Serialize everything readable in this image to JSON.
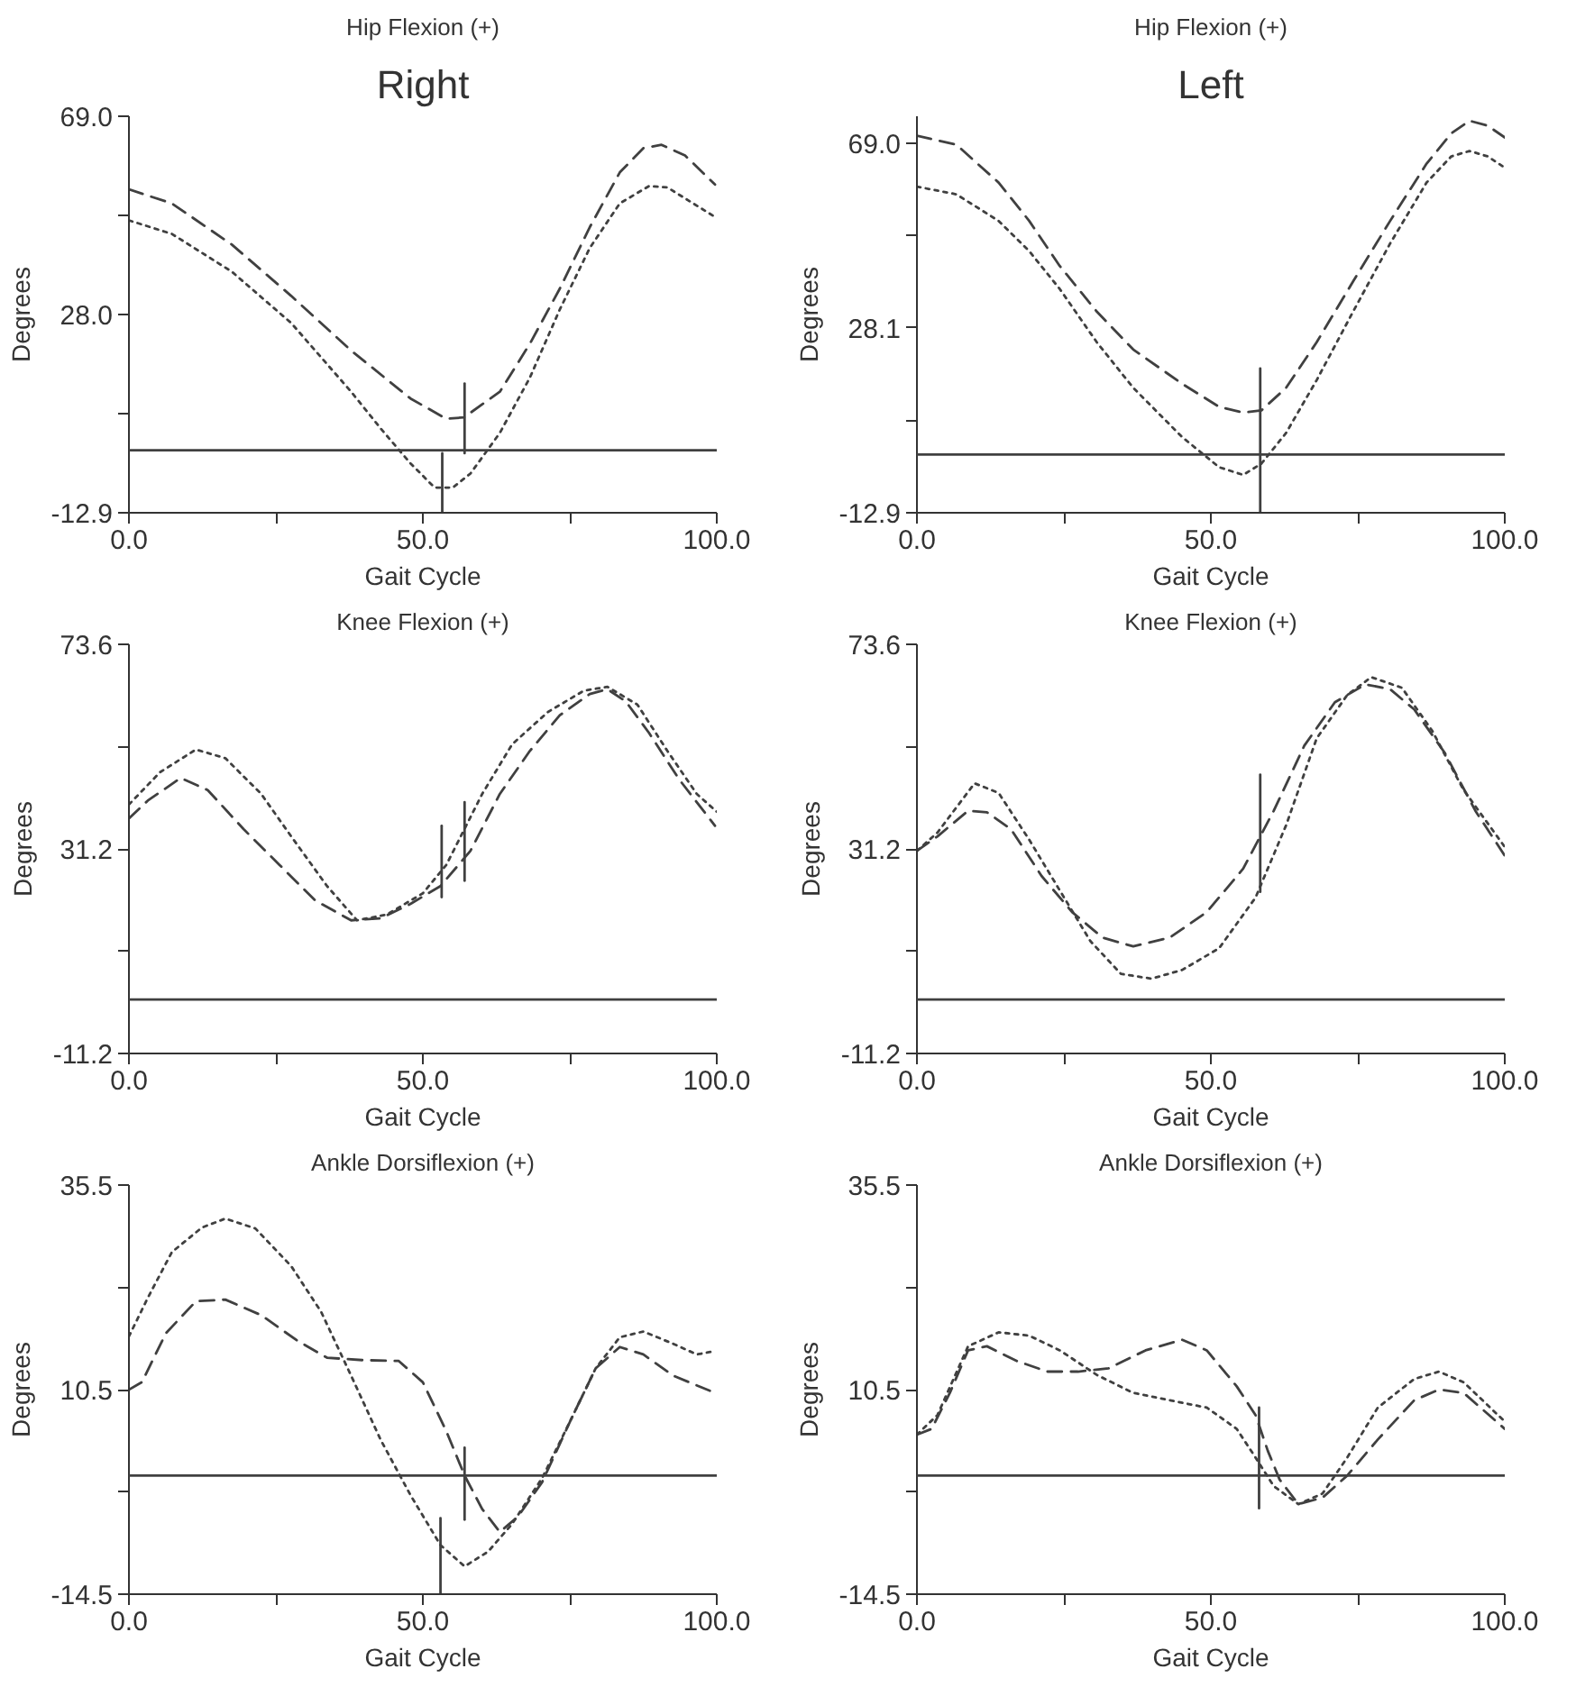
{
  "chart_data": [
    {
      "type": "line",
      "annotations": [
        "Right"
      ],
      "title": "Hip Flexion (+)",
      "xlabel": "Gait Cycle",
      "ylabel": "Degrees",
      "xlim": [
        0,
        100
      ],
      "xticks": [
        {
          "value": 0,
          "label": "0.0"
        },
        {
          "value": 25,
          "label": null
        },
        {
          "value": 50,
          "label": "50.0"
        },
        {
          "value": 75,
          "label": null
        },
        {
          "value": 100,
          "label": "100.0"
        }
      ],
      "ylim": [
        -12.9,
        69.0
      ],
      "yticks": [
        {
          "value": -12.9,
          "label": "-12.9"
        },
        {
          "value": 7.6,
          "label": null
        },
        {
          "value": 28.0,
          "label": "28.0"
        },
        {
          "value": 48.5,
          "label": null
        },
        {
          "value": 69.0,
          "label": "69.0"
        }
      ],
      "ref_lines": [
        {
          "axis": "y",
          "value": 0,
          "color": "#404040"
        }
      ],
      "series": [
        {
          "color": "#404040",
          "line_style": "dashed",
          "x": [
            0,
            7.3,
            17.5,
            27.6,
            37.8,
            47.9,
            54,
            57,
            63.1,
            68.2,
            73.3,
            78.4,
            83.5,
            87.5,
            90.6,
            94.6,
            99.7
          ],
          "values": [
            53.9,
            51.0,
            42.5,
            31.9,
            20.6,
            10.7,
            6.5,
            6.8,
            12.1,
            22.0,
            33.4,
            46.1,
            57.4,
            62.4,
            63.1,
            60.9,
            54.9
          ]
        },
        {
          "color": "#404040",
          "line_style": "dotted",
          "x": [
            0,
            7.3,
            17.5,
            27.6,
            37.8,
            42.9,
            47.9,
            52,
            55.1,
            58.1,
            63.1,
            68.2,
            73.3,
            78.4,
            83.5,
            88.5,
            91.6,
            99.7
          ],
          "values": [
            47.5,
            44.7,
            36.9,
            26.3,
            12.1,
            4.4,
            -2.7,
            -7.7,
            -7.7,
            -4.8,
            3.6,
            15.0,
            29.1,
            41.8,
            51.0,
            54.6,
            54.3,
            48.2
          ]
        },
        {
          "color": "#404040",
          "line_style": "solid",
          "x": [
            57.1,
            57.1
          ],
          "values": [
            13.8,
            -0.6
          ]
        },
        {
          "color": "#404040",
          "line_style": "solid",
          "x": [
            53.3,
            53.3
          ],
          "values": [
            -0.6,
            -12.9
          ]
        }
      ]
    },
    {
      "type": "line",
      "annotations": [
        "Left"
      ],
      "title": "Hip Flexion (+)",
      "xlabel": "Gait Cycle",
      "ylabel": "Degrees",
      "xlim": [
        0,
        100
      ],
      "xticks": [
        {
          "value": 0,
          "label": "0.0"
        },
        {
          "value": 25,
          "label": null
        },
        {
          "value": 50,
          "label": "50.0"
        },
        {
          "value": 75,
          "label": null
        },
        {
          "value": 100,
          "label": "100.0"
        }
      ],
      "ylim": [
        -12.9,
        75
      ],
      "yticks": [
        {
          "value": -12.9,
          "label": "-12.9"
        },
        {
          "value": 7.6,
          "label": null
        },
        {
          "value": 28.1,
          "label": "28.1"
        },
        {
          "value": 48.5,
          "label": null
        },
        {
          "value": 69.0,
          "label": "69.0"
        }
      ],
      "ref_lines": [
        {
          "axis": "y",
          "value": 0,
          "color": "#404040"
        }
      ],
      "series": [
        {
          "color": "#404040",
          "line_style": "dashed",
          "x": [
            0,
            6.7,
            13.9,
            19.1,
            24.3,
            30.6,
            36.8,
            45.1,
            51.4,
            55.5,
            58.6,
            62.8,
            68.0,
            74.2,
            80.5,
            86.7,
            90.9,
            94.0,
            97.1,
            100
          ],
          "values": [
            70.7,
            68.7,
            60.3,
            51.8,
            41.8,
            31.7,
            23.3,
            15.7,
            10.6,
            9.3,
            9.8,
            14.8,
            24.9,
            38.4,
            51.8,
            64.5,
            71.2,
            74.0,
            72.9,
            70.3
          ]
        },
        {
          "color": "#404040",
          "line_style": "dotted",
          "x": [
            0,
            6.7,
            13.9,
            19.1,
            24.3,
            30.6,
            36.8,
            45.1,
            51.4,
            55.5,
            58.6,
            62.8,
            68.0,
            74.2,
            80.5,
            86.7,
            90.9,
            94.0,
            97.1,
            100
          ],
          "values": [
            59.4,
            57.7,
            51.8,
            45.1,
            36.7,
            24.9,
            14.8,
            3.9,
            -2.8,
            -4.5,
            -2.0,
            4.8,
            16.5,
            31.7,
            46.8,
            60.3,
            66.1,
            67.3,
            66.1,
            63.6
          ]
        },
        {
          "color": "#404040",
          "line_style": "solid",
          "x": [
            58.4,
            58.4
          ],
          "values": [
            19.1,
            -12.9
          ]
        }
      ]
    },
    {
      "type": "line",
      "title": "Knee Flexion (+)",
      "xlabel": "Gait Cycle",
      "ylabel": "Degrees",
      "xlim": [
        0,
        100
      ],
      "xticks": [
        {
          "value": 0,
          "label": "0.0"
        },
        {
          "value": 25,
          "label": null
        },
        {
          "value": 50,
          "label": "50.0"
        },
        {
          "value": 75,
          "label": null
        },
        {
          "value": 100,
          "label": "100.0"
        }
      ],
      "ylim": [
        -11.2,
        73.6
      ],
      "yticks": [
        {
          "value": -11.2,
          "label": "-11.2"
        },
        {
          "value": 10.0,
          "label": null
        },
        {
          "value": 31.2,
          "label": "31.2"
        },
        {
          "value": 52.4,
          "label": null
        },
        {
          "value": 73.6,
          "label": "73.6"
        }
      ],
      "ref_lines": [
        {
          "axis": "y",
          "value": 0,
          "color": "#404040"
        }
      ],
      "series": [
        {
          "color": "#404040",
          "line_style": "dashed",
          "x": [
            0,
            3.2,
            8.8,
            13.4,
            19.5,
            25.6,
            31.7,
            37.8,
            42.8,
            47.9,
            53,
            58.1,
            63.1,
            68.2,
            73.3,
            78.4,
            81.4,
            84.5,
            88.5,
            93.6,
            99.7
          ],
          "values": [
            37.5,
            41.2,
            45.9,
            43.4,
            35.3,
            27.9,
            20.5,
            16.4,
            16.8,
            19.8,
            23.5,
            30.8,
            42.6,
            51.5,
            58.9,
            63.3,
            64.3,
            61.8,
            55.2,
            45.6,
            36.0
          ]
        },
        {
          "color": "#404040",
          "line_style": "dotted",
          "x": [
            0,
            5.3,
            11.4,
            16.4,
            22.5,
            27.6,
            33.7,
            38.8,
            43.9,
            50,
            54,
            60.1,
            65.2,
            71.3,
            77.4,
            81.4,
            86.5,
            91.6,
            96.6,
            100
          ],
          "values": [
            40.4,
            47.1,
            51.8,
            50.0,
            42.6,
            33.8,
            23.5,
            16.4,
            17.6,
            22.0,
            27.9,
            42.6,
            52.9,
            59.6,
            64.0,
            64.8,
            61.1,
            51.5,
            42.6,
            38.9
          ]
        },
        {
          "color": "#404040",
          "line_style": "solid",
          "x": [
            57.1,
            57.1
          ],
          "values": [
            40.9,
            24.6
          ]
        },
        {
          "color": "#404040",
          "line_style": "solid",
          "x": [
            53.2,
            53.2
          ],
          "values": [
            36.0,
            21.2
          ]
        }
      ]
    },
    {
      "type": "line",
      "title": "Knee Flexion (+)",
      "xlabel": "Gait Cycle",
      "ylabel": "Degrees",
      "xlim": [
        0,
        100
      ],
      "xticks": [
        {
          "value": 0,
          "label": "0.0"
        },
        {
          "value": 25,
          "label": null
        },
        {
          "value": 50,
          "label": "50.0"
        },
        {
          "value": 75,
          "label": null
        },
        {
          "value": 100,
          "label": "100.0"
        }
      ],
      "ylim": [
        -11.2,
        73.6
      ],
      "yticks": [
        {
          "value": -11.2,
          "label": "-11.2"
        },
        {
          "value": 10.0,
          "label": null
        },
        {
          "value": 31.2,
          "label": "31.2"
        },
        {
          "value": 52.4,
          "label": null
        },
        {
          "value": 73.6,
          "label": "73.6"
        }
      ],
      "ref_lines": [
        {
          "axis": "y",
          "value": 0,
          "color": "#404040"
        }
      ],
      "series": [
        {
          "color": "#404040",
          "line_style": "dashed",
          "x": [
            0,
            3.5,
            8.7,
            11.9,
            16,
            21.2,
            26.4,
            31.6,
            36.8,
            43,
            49.3,
            55.5,
            60.7,
            65.9,
            71.1,
            76.3,
            80.5,
            84.6,
            89.8,
            95,
            100
          ],
          "values": [
            30.8,
            33.8,
            39.1,
            38.8,
            35.3,
            25.6,
            18.1,
            12.8,
            11.0,
            12.8,
            18.1,
            27.1,
            39.1,
            52.6,
            61.6,
            65.3,
            64.3,
            60.1,
            51.1,
            39.1,
            29.8
          ]
        },
        {
          "color": "#404040",
          "line_style": "dotted",
          "x": [
            0,
            3.5,
            9.8,
            13.9,
            19.1,
            24.3,
            29.5,
            34.7,
            39.9,
            45.1,
            51.4,
            57.6,
            62.8,
            68,
            73.2,
            77.3,
            82.5,
            87.7,
            92.9,
            100
          ],
          "values": [
            30.8,
            34.6,
            44.8,
            42.8,
            33.1,
            22.6,
            12.1,
            5.3,
            4.3,
            6.1,
            10.6,
            21.1,
            36.1,
            54.1,
            63.1,
            66.8,
            64.6,
            55.6,
            43.6,
            31.6
          ]
        },
        {
          "color": "#404040",
          "line_style": "solid",
          "x": [
            58.4,
            58.4
          ],
          "values": [
            46.6,
            22.3
          ]
        }
      ]
    },
    {
      "type": "line",
      "title": "Ankle Dorsiflexion (+)",
      "xlabel": "Gait Cycle",
      "ylabel": "Degrees",
      "xlim": [
        0,
        100
      ],
      "xticks": [
        {
          "value": 0,
          "label": "0.0"
        },
        {
          "value": 25,
          "label": null
        },
        {
          "value": 50,
          "label": "50.0"
        },
        {
          "value": 75,
          "label": null
        },
        {
          "value": 100,
          "label": "100.0"
        }
      ],
      "ylim": [
        -14.5,
        35.5
      ],
      "yticks": [
        {
          "value": -14.5,
          "label": "-14.5"
        },
        {
          "value": -2.0,
          "label": null
        },
        {
          "value": 10.5,
          "label": "10.5"
        },
        {
          "value": 23.0,
          "label": null
        },
        {
          "value": 35.5,
          "label": "35.5"
        }
      ],
      "ref_lines": [
        {
          "axis": "y",
          "value": 0,
          "color": "#404040"
        }
      ],
      "series": [
        {
          "color": "#404040",
          "line_style": "dashed",
          "x": [
            0,
            2.2,
            6.3,
            11.4,
            16.4,
            22.5,
            28.6,
            33.7,
            39.8,
            45.9,
            50,
            54,
            57.1,
            60.1,
            63.1,
            66.2,
            70.3,
            75.3,
            79.4,
            83.5,
            87.5,
            92.6,
            99.7
          ],
          "values": [
            10.5,
            11.4,
            17.4,
            21.3,
            21.5,
            19.6,
            16.5,
            14.4,
            14.1,
            14.0,
            11.4,
            5.4,
            0.0,
            -4.1,
            -6.9,
            -5.0,
            -0.8,
            7.0,
            13.1,
            15.7,
            14.8,
            12.2,
            10.1
          ]
        },
        {
          "color": "#404040",
          "line_style": "dotted",
          "x": [
            0,
            3.2,
            7.3,
            12.4,
            16.4,
            21.5,
            27.6,
            32.7,
            37.8,
            42.8,
            47.9,
            53,
            57.1,
            61.1,
            65.2,
            70.3,
            75.3,
            79.4,
            83.5,
            87.5,
            92.6,
            96.6,
            99.7
          ],
          "values": [
            17.0,
            21.7,
            27.3,
            30.3,
            31.4,
            30.2,
            25.6,
            20.0,
            12.2,
            4.4,
            -2.4,
            -8.5,
            -11.1,
            -9.3,
            -5.9,
            -0.3,
            7.0,
            13.1,
            16.9,
            17.6,
            16.1,
            14.8,
            15.2
          ]
        },
        {
          "color": "#404040",
          "line_style": "solid",
          "x": [
            57.1,
            57.1
          ],
          "values": [
            3.4,
            -5.4
          ]
        },
        {
          "color": "#404040",
          "line_style": "solid",
          "x": [
            53.0,
            53.0
          ],
          "values": [
            -5.2,
            -14.5
          ]
        }
      ]
    },
    {
      "type": "line",
      "title": "Ankle Dorsiflexion (+)",
      "xlabel": "Gait Cycle",
      "ylabel": "Degrees",
      "xlim": [
        0,
        100
      ],
      "xticks": [
        {
          "value": 0,
          "label": "0.0"
        },
        {
          "value": 25,
          "label": null
        },
        {
          "value": 50,
          "label": "50.0"
        },
        {
          "value": 75,
          "label": null
        },
        {
          "value": 100,
          "label": "100.0"
        }
      ],
      "ylim": [
        -14.5,
        35.5
      ],
      "yticks": [
        {
          "value": -14.5,
          "label": "-14.5"
        },
        {
          "value": -2.0,
          "label": null
        },
        {
          "value": 10.5,
          "label": "10.5"
        },
        {
          "value": 23.0,
          "label": null
        },
        {
          "value": 35.5,
          "label": "35.5"
        }
      ],
      "ref_lines": [
        {
          "axis": "y",
          "value": 0,
          "color": "#404040"
        }
      ],
      "series": [
        {
          "color": "#404040",
          "line_style": "dashed",
          "x": [
            0,
            2.5,
            5.6,
            8.7,
            11.9,
            17,
            22.2,
            27.4,
            32.6,
            38.9,
            45.1,
            49.3,
            54.4,
            57.6,
            59.7,
            61.7,
            64.9,
            69,
            73.2,
            78.4,
            84.6,
            88.8,
            93,
            100
          ],
          "values": [
            5.0,
            5.7,
            10.1,
            15.3,
            15.8,
            14.0,
            12.7,
            12.7,
            13.1,
            15.3,
            16.6,
            15.3,
            10.9,
            7.4,
            3.0,
            -0.5,
            -3.5,
            -2.7,
            0.0,
            4.4,
            9.2,
            10.5,
            10.1,
            5.7
          ]
        },
        {
          "color": "#404040",
          "line_style": "dotted",
          "x": [
            0,
            3.5,
            8.7,
            13.9,
            19.1,
            24.3,
            30.6,
            36.8,
            43,
            49.3,
            54.4,
            57.6,
            60.7,
            64.9,
            69,
            73.2,
            78.4,
            84.6,
            88.8,
            93,
            100
          ],
          "values": [
            5.0,
            7.4,
            15.8,
            17.5,
            17.1,
            15.3,
            12.3,
            10.1,
            9.2,
            8.3,
            5.7,
            2.2,
            -1.3,
            -3.5,
            -2.2,
            2.2,
            8.3,
            11.8,
            12.7,
            11.4,
            6.6
          ]
        },
        {
          "color": "#404040",
          "line_style": "solid",
          "x": [
            58.2,
            58.2
          ],
          "values": [
            8.3,
            -4.0
          ]
        }
      ]
    }
  ]
}
